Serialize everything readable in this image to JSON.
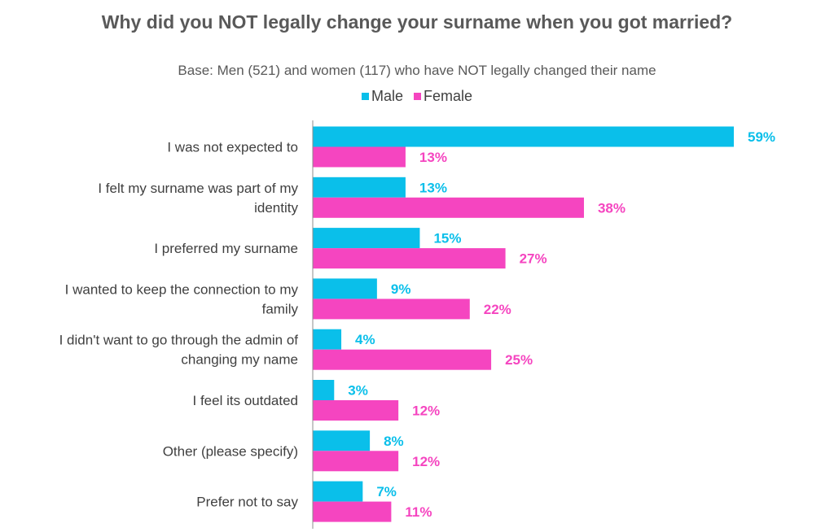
{
  "chart_data": {
    "type": "bar",
    "orientation": "horizontal",
    "title": "Why did you NOT legally change your surname when you got married?",
    "subtitle": "Base: Men (521) and women (117) who have NOT legally changed their name",
    "categories": [
      [
        "I was not expected to"
      ],
      [
        "I felt my surname was part of my",
        "identity"
      ],
      [
        "I preferred my surname"
      ],
      [
        "I wanted to keep the connection to my",
        "family"
      ],
      [
        "I didn't want to go through the admin of",
        "changing my name"
      ],
      [
        "I feel its outdated"
      ],
      [
        "Other (please specify)"
      ],
      [
        "Prefer not to say"
      ]
    ],
    "series": [
      {
        "name": "Male",
        "color": "#0ABFEA",
        "values": [
          59,
          13,
          15,
          9,
          4,
          3,
          8,
          7
        ]
      },
      {
        "name": "Female",
        "color": "#F545C0",
        "values": [
          13,
          38,
          27,
          22,
          25,
          12,
          12,
          11
        ]
      }
    ],
    "value_suffix": "%",
    "xlim": [
      0,
      59
    ],
    "legend_position": "top-center",
    "grid": false
  }
}
